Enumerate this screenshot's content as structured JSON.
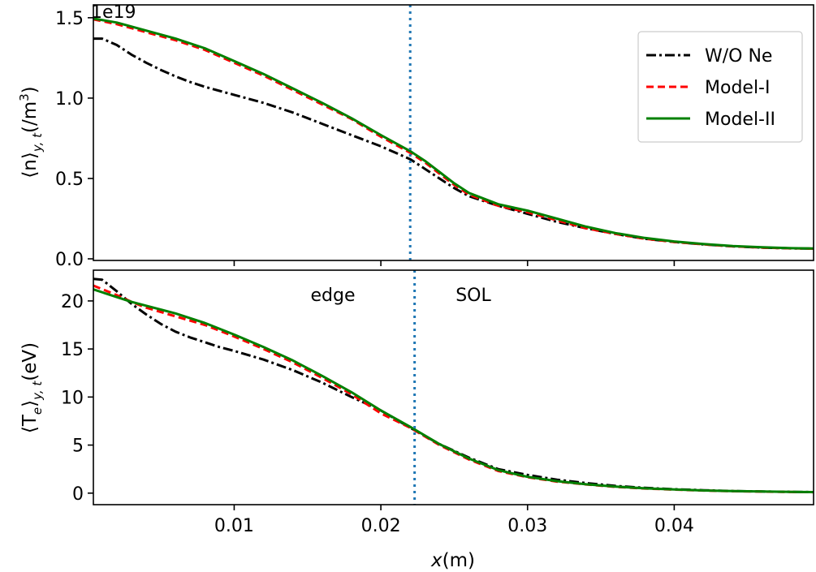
{
  "chart_data": [
    {
      "type": "line",
      "panel": "top",
      "ylabel_main": "⟨n⟩",
      "ylabel_sub": "y, t",
      "ylabel_unit": "(/m",
      "ylabel_unit_sup": "3",
      "ylabel_unit_close": ")",
      "offset_label": "1e19",
      "xlim": [
        0.0004,
        0.0495
      ],
      "ylim": [
        -0.01,
        1.58
      ],
      "y_scale_factor": 1e+19,
      "yticks": [
        0.0,
        0.5,
        1.0,
        1.5
      ],
      "ytick_labels": [
        "0.0",
        "0.5",
        "1.0",
        "1.5"
      ],
      "xticks": [
        0.01,
        0.02,
        0.03,
        0.04
      ],
      "grid": false,
      "legend_position": "top-right",
      "vline": {
        "x": 0.022,
        "color": "#1f77b4",
        "style": "dotted"
      },
      "series": [
        {
          "name": "W/O Ne",
          "color": "#000000",
          "style": "dashdot",
          "points": [
            [
              0.0004,
              1.37
            ],
            [
              0.001,
              1.37
            ],
            [
              0.002,
              1.33
            ],
            [
              0.003,
              1.27
            ],
            [
              0.004,
              1.22
            ],
            [
              0.005,
              1.175
            ],
            [
              0.006,
              1.135
            ],
            [
              0.007,
              1.1
            ],
            [
              0.008,
              1.07
            ],
            [
              0.009,
              1.045
            ],
            [
              0.01,
              1.02
            ],
            [
              0.012,
              0.97
            ],
            [
              0.014,
              0.91
            ],
            [
              0.016,
              0.84
            ],
            [
              0.018,
              0.77
            ],
            [
              0.02,
              0.7
            ],
            [
              0.022,
              0.62
            ],
            [
              0.023,
              0.56
            ],
            [
              0.024,
              0.5
            ],
            [
              0.025,
              0.44
            ],
            [
              0.026,
              0.39
            ],
            [
              0.028,
              0.33
            ],
            [
              0.03,
              0.28
            ],
            [
              0.032,
              0.23
            ],
            [
              0.034,
              0.19
            ],
            [
              0.036,
              0.155
            ],
            [
              0.038,
              0.125
            ],
            [
              0.04,
              0.105
            ],
            [
              0.042,
              0.09
            ],
            [
              0.044,
              0.078
            ],
            [
              0.046,
              0.07
            ],
            [
              0.048,
              0.065
            ],
            [
              0.0495,
              0.063
            ]
          ]
        },
        {
          "name": "Model-I",
          "color": "#ff0000",
          "style": "dashed",
          "points": [
            [
              0.0004,
              1.49
            ],
            [
              0.002,
              1.46
            ],
            [
              0.004,
              1.41
            ],
            [
              0.006,
              1.36
            ],
            [
              0.008,
              1.3
            ],
            [
              0.01,
              1.22
            ],
            [
              0.012,
              1.14
            ],
            [
              0.014,
              1.05
            ],
            [
              0.016,
              0.96
            ],
            [
              0.018,
              0.87
            ],
            [
              0.02,
              0.76
            ],
            [
              0.022,
              0.66
            ],
            [
              0.023,
              0.6
            ],
            [
              0.024,
              0.53
            ],
            [
              0.025,
              0.46
            ],
            [
              0.026,
              0.4
            ],
            [
              0.028,
              0.33
            ],
            [
              0.03,
              0.29
            ],
            [
              0.032,
              0.24
            ],
            [
              0.034,
              0.19
            ],
            [
              0.036,
              0.155
            ],
            [
              0.038,
              0.125
            ],
            [
              0.04,
              0.105
            ],
            [
              0.042,
              0.09
            ],
            [
              0.044,
              0.078
            ],
            [
              0.046,
              0.07
            ],
            [
              0.048,
              0.065
            ],
            [
              0.0495,
              0.063
            ]
          ]
        },
        {
          "name": "Model-II",
          "color": "#008000",
          "style": "solid",
          "points": [
            [
              0.0004,
              1.495
            ],
            [
              0.002,
              1.47
            ],
            [
              0.004,
              1.42
            ],
            [
              0.006,
              1.37
            ],
            [
              0.008,
              1.31
            ],
            [
              0.01,
              1.23
            ],
            [
              0.012,
              1.15
            ],
            [
              0.014,
              1.06
            ],
            [
              0.016,
              0.97
            ],
            [
              0.018,
              0.875
            ],
            [
              0.02,
              0.77
            ],
            [
              0.022,
              0.67
            ],
            [
              0.023,
              0.61
            ],
            [
              0.024,
              0.54
            ],
            [
              0.025,
              0.47
            ],
            [
              0.026,
              0.41
            ],
            [
              0.028,
              0.34
            ],
            [
              0.03,
              0.3
            ],
            [
              0.032,
              0.25
            ],
            [
              0.034,
              0.2
            ],
            [
              0.036,
              0.16
            ],
            [
              0.038,
              0.13
            ],
            [
              0.04,
              0.108
            ],
            [
              0.042,
              0.092
            ],
            [
              0.044,
              0.08
            ],
            [
              0.046,
              0.072
            ],
            [
              0.048,
              0.066
            ],
            [
              0.0495,
              0.064
            ]
          ]
        }
      ]
    },
    {
      "type": "line",
      "panel": "bottom",
      "ylabel_main": "⟨T",
      "ylabel_e": "e",
      "ylabel_close": "⟩",
      "ylabel_sub": "y, t",
      "ylabel_unit": "(eV)",
      "xlabel_var": "x",
      "xlabel_unit": "(m)",
      "xlim": [
        0.0004,
        0.0495
      ],
      "ylim": [
        -1.2,
        23.2
      ],
      "yticks": [
        0,
        5,
        10,
        15,
        20
      ],
      "ytick_labels": [
        "0",
        "5",
        "10",
        "15",
        "20"
      ],
      "xticks": [
        0.01,
        0.02,
        0.03,
        0.04
      ],
      "xtick_labels": [
        "0.01",
        "0.02",
        "0.03",
        "0.04"
      ],
      "grid": false,
      "vline": {
        "x": 0.0223,
        "color": "#1f77b4",
        "style": "dotted"
      },
      "annotations": [
        {
          "text": "edge",
          "x": 0.0172,
          "y": 19.8
        },
        {
          "text": "SOL",
          "x": 0.0274,
          "y": 19.8
        }
      ],
      "series": [
        {
          "name": "W/O Ne",
          "color": "#000000",
          "style": "dashdot",
          "points": [
            [
              0.0004,
              22.3
            ],
            [
              0.001,
              22.2
            ],
            [
              0.002,
              21.0
            ],
            [
              0.003,
              19.7
            ],
            [
              0.004,
              18.6
            ],
            [
              0.005,
              17.6
            ],
            [
              0.006,
              16.8
            ],
            [
              0.007,
              16.2
            ],
            [
              0.008,
              15.7
            ],
            [
              0.009,
              15.2
            ],
            [
              0.01,
              14.8
            ],
            [
              0.012,
              13.9
            ],
            [
              0.014,
              12.8
            ],
            [
              0.016,
              11.5
            ],
            [
              0.018,
              10.0
            ],
            [
              0.02,
              8.6
            ],
            [
              0.022,
              6.8
            ],
            [
              0.024,
              5.1
            ],
            [
              0.026,
              3.7
            ],
            [
              0.028,
              2.5
            ],
            [
              0.03,
              1.9
            ],
            [
              0.032,
              1.4
            ],
            [
              0.034,
              1.05
            ],
            [
              0.036,
              0.75
            ],
            [
              0.038,
              0.55
            ],
            [
              0.04,
              0.4
            ],
            [
              0.042,
              0.3
            ],
            [
              0.044,
              0.22
            ],
            [
              0.046,
              0.17
            ],
            [
              0.048,
              0.13
            ],
            [
              0.0495,
              0.11
            ]
          ]
        },
        {
          "name": "Model-I",
          "color": "#ff0000",
          "style": "dashed",
          "points": [
            [
              0.0004,
              21.6
            ],
            [
              0.002,
              20.6
            ],
            [
              0.003,
              19.9
            ],
            [
              0.004,
              19.3
            ],
            [
              0.006,
              18.4
            ],
            [
              0.008,
              17.5
            ],
            [
              0.01,
              16.3
            ],
            [
              0.012,
              15.0
            ],
            [
              0.014,
              13.6
            ],
            [
              0.016,
              12.0
            ],
            [
              0.018,
              10.3
            ],
            [
              0.02,
              8.3
            ],
            [
              0.022,
              6.8
            ],
            [
              0.024,
              5.0
            ],
            [
              0.026,
              3.5
            ],
            [
              0.028,
              2.3
            ],
            [
              0.03,
              1.65
            ],
            [
              0.032,
              1.2
            ],
            [
              0.034,
              0.9
            ],
            [
              0.036,
              0.65
            ],
            [
              0.038,
              0.48
            ],
            [
              0.04,
              0.36
            ],
            [
              0.042,
              0.27
            ],
            [
              0.044,
              0.2
            ],
            [
              0.046,
              0.16
            ],
            [
              0.048,
              0.12
            ],
            [
              0.0495,
              0.1
            ]
          ]
        },
        {
          "name": "Model-II",
          "color": "#008000",
          "style": "solid",
          "points": [
            [
              0.0004,
              21.2
            ],
            [
              0.002,
              20.4
            ],
            [
              0.003,
              19.9
            ],
            [
              0.004,
              19.5
            ],
            [
              0.006,
              18.7
            ],
            [
              0.008,
              17.7
            ],
            [
              0.01,
              16.5
            ],
            [
              0.012,
              15.2
            ],
            [
              0.014,
              13.8
            ],
            [
              0.016,
              12.2
            ],
            [
              0.018,
              10.5
            ],
            [
              0.02,
              8.6
            ],
            [
              0.022,
              6.9
            ],
            [
              0.024,
              5.1
            ],
            [
              0.026,
              3.6
            ],
            [
              0.028,
              2.4
            ],
            [
              0.03,
              1.7
            ],
            [
              0.032,
              1.25
            ],
            [
              0.034,
              0.92
            ],
            [
              0.036,
              0.68
            ],
            [
              0.038,
              0.5
            ],
            [
              0.04,
              0.38
            ],
            [
              0.042,
              0.28
            ],
            [
              0.044,
              0.21
            ],
            [
              0.046,
              0.17
            ],
            [
              0.048,
              0.13
            ],
            [
              0.0495,
              0.11
            ]
          ]
        }
      ]
    }
  ]
}
